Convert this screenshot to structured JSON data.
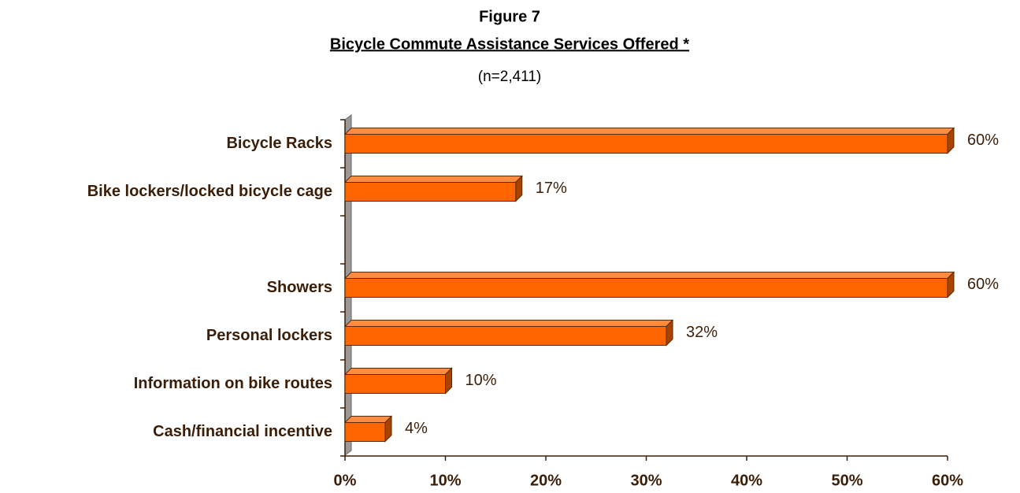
{
  "chart_data": {
    "type": "bar",
    "orientation": "horizontal",
    "title": "Figure 7",
    "subtitle": "Bicycle Commute Assistance Services Offered *",
    "note": "(n=2,411)",
    "categories": [
      "Bicycle Racks",
      "Bike lockers/locked bicycle cage",
      null,
      "Showers",
      "Personal lockers",
      "Information on bike routes",
      "Cash/financial incentive"
    ],
    "values": [
      60,
      17,
      null,
      60,
      32,
      10,
      4
    ],
    "value_labels": [
      "60%",
      "17%",
      null,
      "60%",
      "32%",
      "10%",
      "4%"
    ],
    "color": "#ff6600",
    "xlim": [
      0,
      60
    ],
    "xticks": [
      {
        "value": 0,
        "label": "0%"
      },
      {
        "value": 10,
        "label": "10%"
      },
      {
        "value": 20,
        "label": "20%"
      },
      {
        "value": 30,
        "label": "30%"
      },
      {
        "value": 40,
        "label": "40%"
      },
      {
        "value": 50,
        "label": "50%"
      },
      {
        "value": 60,
        "label": "60%"
      }
    ],
    "grid": false
  }
}
